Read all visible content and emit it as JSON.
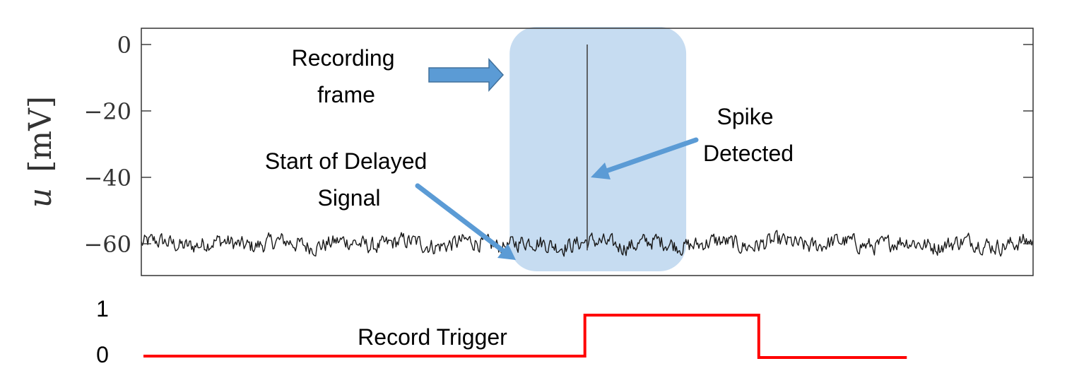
{
  "colors": {
    "trace": "#1a1a1a",
    "frame_fill": "#bcd6ee",
    "arrow": "#5b9bd5",
    "arrow_dark": "#41719c",
    "trigger": "#ff0000",
    "axis": "#333333"
  },
  "chart_data": [
    {
      "type": "line",
      "title": "",
      "ylabel_var": "u",
      "ylabel_unit": "[mV]",
      "xlabel": "",
      "ylim": [
        -70,
        5
      ],
      "xlim": [
        0,
        1000
      ],
      "yticks": [
        0,
        -20,
        -40,
        -60
      ],
      "ytick_labels": [
        "0",
        "−20",
        "−40",
        "−60"
      ],
      "grid": false,
      "baseline": -60,
      "noise_amplitude": 4,
      "spike": {
        "x": 500,
        "peak": 0
      },
      "recording_frame": {
        "x_start": 413,
        "x_end": 611
      },
      "annotations": {
        "recording_frame": [
          "Recording",
          "frame"
        ],
        "spike_detected": [
          "Spike",
          "Detected"
        ],
        "start_delayed": [
          "Start of Delayed",
          "Signal"
        ]
      }
    },
    {
      "type": "line",
      "title": "Record Trigger",
      "ytick_labels": [
        "1",
        "0"
      ],
      "x": [
        0,
        495,
        495,
        690,
        690,
        856
      ],
      "y": [
        0,
        0,
        1,
        1,
        0,
        0
      ],
      "xlim": [
        0,
        1000
      ],
      "ylim": [
        0,
        1
      ]
    }
  ]
}
